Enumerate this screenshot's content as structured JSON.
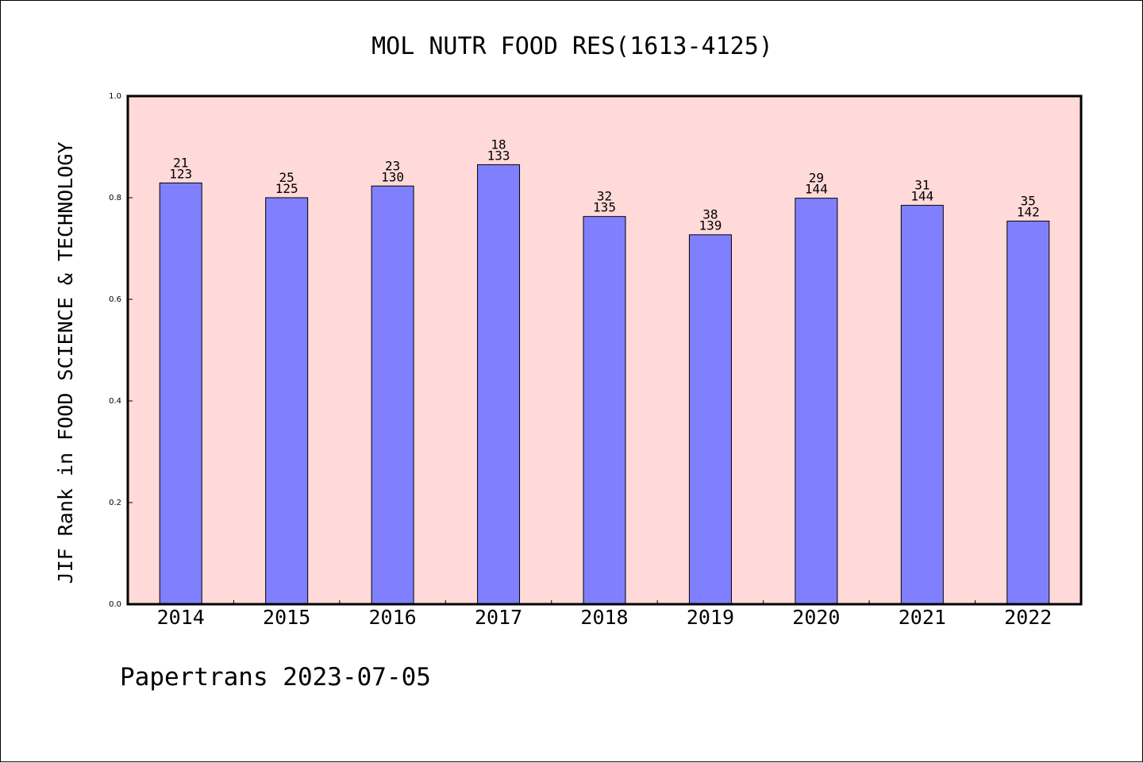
{
  "chart_data": {
    "type": "bar",
    "title": "MOL NUTR FOOD RES(1613-4125)",
    "xlabel": "",
    "ylabel": "JIF Rank in FOOD SCIENCE & TECHNOLOGY",
    "ylim": [
      0,
      1.0
    ],
    "yticks": [
      "0.0",
      "0.2",
      "0.4",
      "0.6",
      "0.8",
      "1.0"
    ],
    "categories": [
      "2014",
      "2015",
      "2016",
      "2017",
      "2018",
      "2019",
      "2020",
      "2021",
      "2022"
    ],
    "values": [
      0.829,
      0.8,
      0.823,
      0.865,
      0.763,
      0.727,
      0.799,
      0.785,
      0.754
    ],
    "rank": [
      "21",
      "25",
      "23",
      "18",
      "32",
      "38",
      "29",
      "31",
      "35"
    ],
    "total": [
      "123",
      "125",
      "130",
      "133",
      "135",
      "139",
      "144",
      "144",
      "142"
    ],
    "grid": false,
    "colors": {
      "plot_background": "#ffdad8",
      "bar_fill": "#8080ff",
      "bar_stroke": "#000000"
    }
  },
  "footer": {
    "credit": "Papertrans 2023-07-05"
  }
}
